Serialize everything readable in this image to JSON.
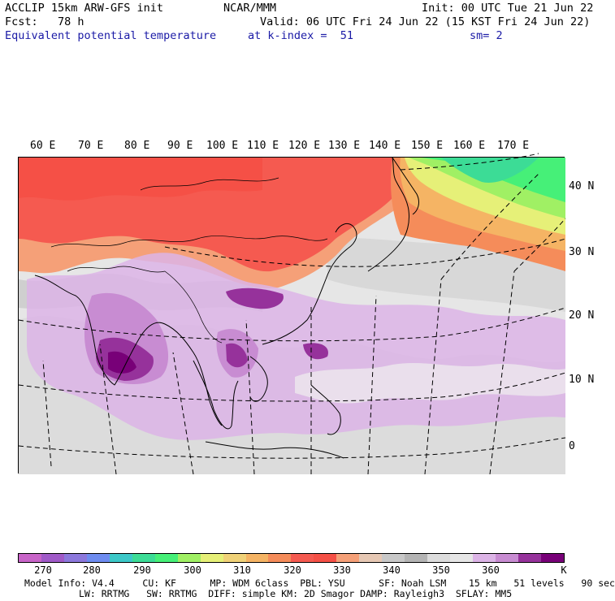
{
  "header": {
    "line1_left": "ACCLIP 15km ARW-GFS init",
    "line1_center": "NCAR/MMM",
    "line1_right": "Init: 00 UTC Tue 21 Jun 22",
    "line2_left": "Fcst:   78 h",
    "line2_right": "Valid: 06 UTC Fri 24 Jun 22 (15 KST Fri 24 Jun 22)",
    "line3_left": "Equivalent potential temperature",
    "line3_center": "at k-index =  51",
    "line3_right": "sm= 2"
  },
  "map": {
    "lon_labels": [
      "60 E",
      "70 E",
      "80 E",
      "90 E",
      "100 E",
      "110 E",
      "120 E",
      "130 E",
      "140 E",
      "150 E",
      "160 E",
      "170 E"
    ],
    "lat_labels": [
      "40 N",
      "30 N",
      "20 N",
      "10 N",
      "0"
    ]
  },
  "colorbar": {
    "colors": [
      "#c864c8",
      "#a05ac8",
      "#8c78dc",
      "#6e8cf0",
      "#3cc8c8",
      "#3cdc96",
      "#46f078",
      "#a0f064",
      "#e6f078",
      "#f0d278",
      "#f5b464",
      "#f58c5a",
      "#f55a50",
      "#f55046",
      "#f5a078",
      "#e6c8b4",
      "#c8c8c8",
      "#b4b4b4",
      "#dcdcdc",
      "#e6e6e6",
      "#dcb4e6",
      "#c88cd2",
      "#96329b",
      "#780078"
    ],
    "labels": [
      "270",
      "280",
      "290",
      "300",
      "310",
      "320",
      "330",
      "340",
      "350",
      "360"
    ],
    "unit": "K"
  },
  "footer": {
    "line1": "Model Info: V4.4     CU: KF      MP: WDM 6class  PBL: YSU      SF: Noah LSM    15 km   51 levels   90 sec",
    "line2": "LW: RRTMG   SW: RRTMG  DIFF: simple KM: 2D Smagor DAMP: Rayleigh3  SFLAY: MM5"
  }
}
